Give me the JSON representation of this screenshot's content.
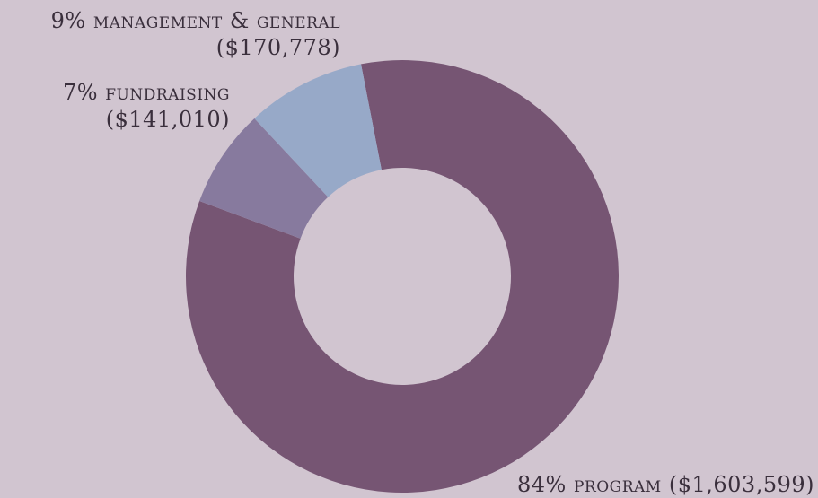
{
  "chart_data": {
    "type": "pie",
    "title": "",
    "slices": [
      {
        "key": "program",
        "pct_label": "84%",
        "name": "program",
        "amount_label": "($1,603,599)",
        "value": 1603599,
        "color": "#765573"
      },
      {
        "key": "fundraising",
        "pct_label": "7%",
        "name": "fundraising",
        "amount_label": "($141,010)",
        "value": 141010,
        "color": "#877a9e"
      },
      {
        "key": "management",
        "pct_label": "9%",
        "name": "management & general",
        "amount_label": "($170,778)",
        "value": 170778,
        "color": "#97a9c8"
      }
    ],
    "legend": "none",
    "donut": true
  },
  "colors": {
    "background": "#d1c5d0",
    "text": "#3a2f3c"
  }
}
